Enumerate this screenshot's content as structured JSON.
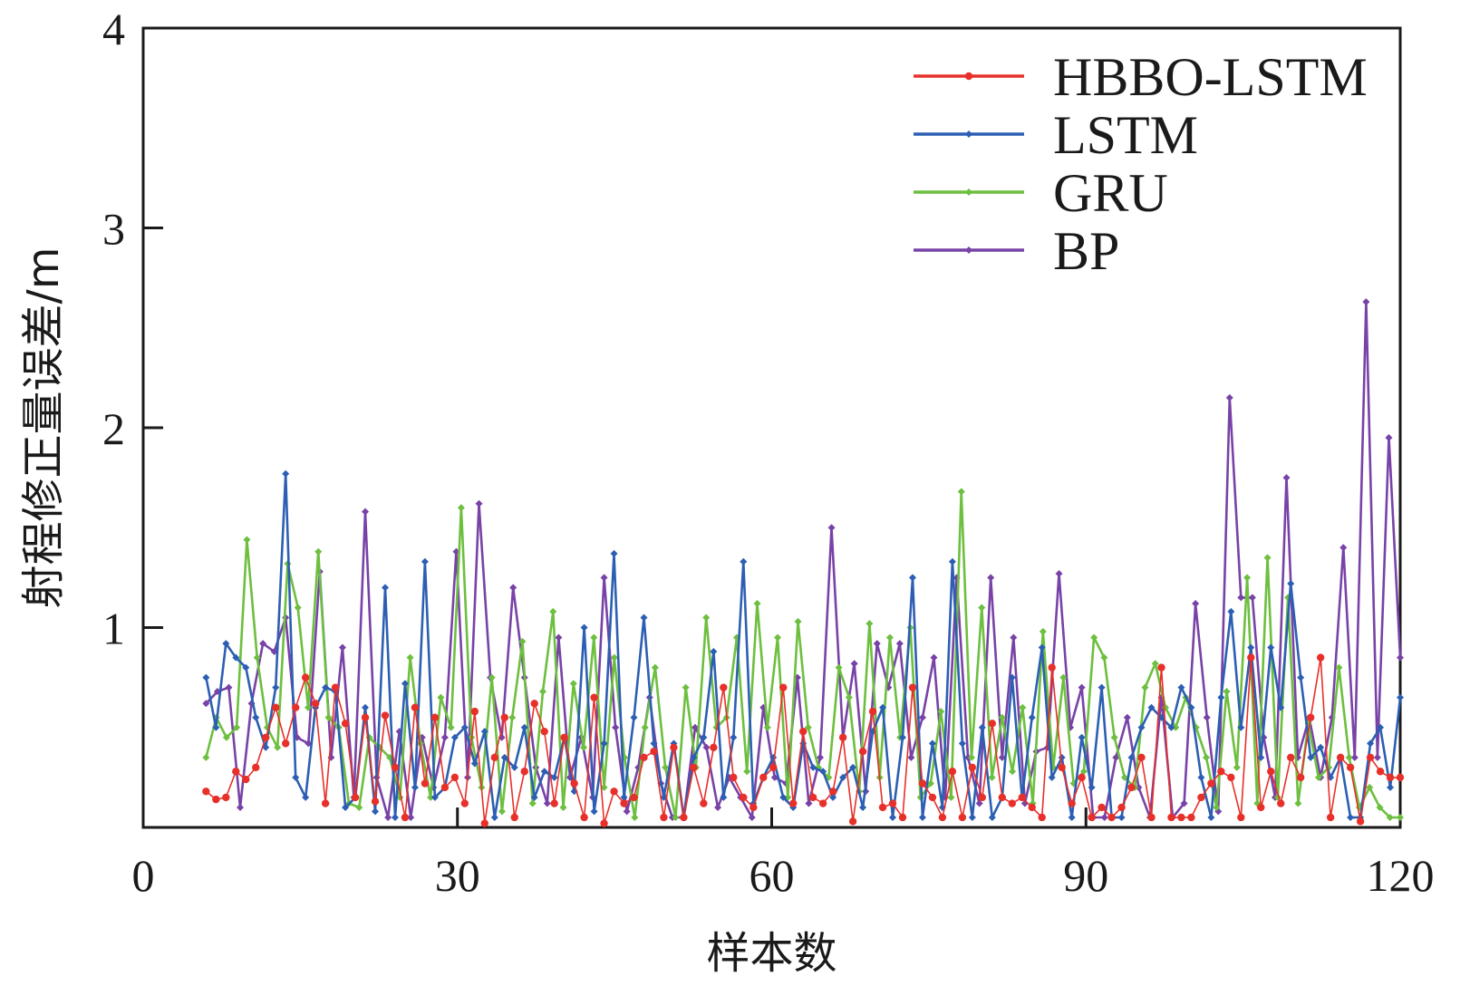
{
  "chart_data": {
    "type": "line",
    "title": "",
    "xlabel": "样本数",
    "ylabel": "射程修正量误差/m",
    "xlim": [
      0,
      120
    ],
    "ylim": [
      0,
      4
    ],
    "xticks": [
      0,
      30,
      60,
      90,
      120
    ],
    "yticks": [
      1,
      2,
      3,
      4
    ],
    "xtick_labels": [
      "0",
      "30",
      "60",
      "90",
      "120"
    ],
    "ytick_labels": [
      "1",
      "2",
      "3",
      "4"
    ],
    "grid": false,
    "legend_position": "top-right",
    "series": [
      {
        "name": "HBBO-LSTM",
        "color": "#e8302a",
        "values": [
          0.18,
          0.14,
          0.15,
          0.28,
          0.24,
          0.3,
          0.45,
          0.6,
          0.42,
          0.6,
          0.75,
          0.62,
          0.12,
          0.7,
          0.52,
          0.15,
          0.55,
          0.13,
          0.56,
          0.3,
          0.05,
          0.6,
          0.22,
          0.55,
          0.2,
          0.25,
          0.12,
          0.58,
          0.02,
          0.35,
          0.55,
          0.05,
          0.28,
          0.62,
          0.48,
          0.12,
          0.45,
          0.22,
          0.05,
          0.65,
          0.02,
          0.18,
          0.12,
          0.15,
          0.35,
          0.38,
          0.05,
          0.4,
          0.05,
          0.3,
          0.12,
          0.4,
          0.7,
          0.25,
          0.15,
          0.1,
          0.25,
          0.3,
          0.7,
          0.12,
          0.48,
          0.15,
          0.12,
          0.18,
          0.45,
          0.03,
          0.38,
          0.58,
          0.1,
          0.12,
          0.05,
          0.7,
          0.22,
          0.15,
          0.05,
          0.28,
          0.05,
          0.3,
          0.15,
          0.52,
          0.15,
          0.12,
          0.15,
          0.1,
          0.05,
          0.8,
          0.3,
          0.12,
          0.25,
          0.05,
          0.1,
          0.05,
          0.1,
          0.2,
          0.35,
          0.05,
          0.8,
          0.05,
          0.05,
          0.05,
          0.15,
          0.22,
          0.28,
          0.25,
          0.05,
          0.85,
          0.1,
          0.28,
          0.12,
          0.35,
          0.25,
          0.55,
          0.85,
          0.05,
          0.35,
          0.3,
          0.03,
          0.35,
          0.28,
          0.25,
          0.25
        ]
      },
      {
        "name": "LSTM",
        "color": "#2c5fb3",
        "values": [
          0.75,
          0.5,
          0.92,
          0.85,
          0.8,
          0.55,
          0.4,
          0.7,
          1.77,
          0.25,
          0.15,
          0.6,
          0.7,
          0.68,
          0.1,
          0.15,
          0.6,
          0.08,
          1.2,
          0.05,
          0.72,
          0.2,
          1.33,
          0.15,
          0.2,
          0.45,
          0.5,
          0.32,
          0.48,
          0.05,
          0.35,
          0.3,
          0.5,
          0.15,
          0.28,
          0.25,
          0.45,
          0.18,
          1.0,
          0.08,
          0.42,
          1.37,
          0.15,
          0.55,
          1.05,
          0.42,
          0.15,
          0.42,
          0.05,
          0.35,
          0.45,
          0.88,
          0.15,
          0.45,
          1.33,
          0.12,
          0.25,
          0.35,
          0.15,
          0.1,
          0.42,
          0.3,
          0.28,
          0.15,
          0.25,
          0.3,
          0.1,
          0.48,
          0.6,
          0.05,
          0.45,
          1.25,
          0.05,
          0.42,
          0.1,
          1.33,
          0.42,
          0.05,
          0.5,
          0.05,
          0.15,
          0.75,
          0.15,
          0.55,
          0.9,
          0.25,
          0.35,
          0.05,
          0.45,
          0.2,
          0.7,
          0.05,
          0.05,
          0.35,
          0.5,
          0.6,
          0.55,
          0.5,
          0.7,
          0.6,
          0.25,
          0.05,
          0.65,
          1.08,
          0.5,
          0.9,
          0.35,
          0.9,
          0.6,
          1.22,
          0.75,
          0.35,
          0.4,
          0.25,
          0.35,
          0.05,
          0.05,
          0.42,
          0.5,
          0.2,
          0.65
        ]
      },
      {
        "name": "GRU",
        "color": "#6dbf3f",
        "values": [
          0.35,
          0.55,
          0.45,
          0.5,
          1.44,
          0.85,
          0.5,
          0.4,
          1.32,
          1.1,
          0.6,
          1.38,
          0.55,
          0.5,
          0.12,
          0.1,
          0.45,
          0.4,
          0.35,
          0.15,
          0.85,
          0.42,
          0.15,
          0.65,
          0.5,
          1.6,
          0.45,
          0.2,
          0.75,
          0.08,
          0.55,
          0.93,
          0.12,
          0.68,
          1.08,
          0.1,
          0.72,
          0.4,
          0.95,
          0.2,
          0.85,
          0.35,
          0.05,
          0.5,
          0.8,
          0.3,
          0.05,
          0.7,
          0.3,
          1.05,
          0.5,
          0.55,
          0.95,
          0.28,
          1.12,
          0.5,
          0.95,
          0.15,
          1.03,
          0.5,
          0.3,
          0.25,
          0.8,
          0.65,
          0.18,
          1.02,
          0.25,
          0.95,
          0.45,
          1.0,
          0.15,
          0.22,
          0.58,
          0.15,
          1.68,
          0.35,
          1.1,
          0.25,
          0.55,
          0.28,
          0.6,
          0.12,
          0.98,
          0.3,
          0.75,
          0.22,
          0.28,
          0.95,
          0.85,
          0.45,
          0.25,
          0.2,
          0.7,
          0.82,
          0.6,
          0.5,
          0.65,
          0.5,
          0.35,
          0.1,
          0.68,
          0.3,
          1.25,
          0.12,
          1.35,
          0.15,
          1.15,
          0.12,
          0.52,
          0.25,
          0.3,
          0.8,
          0.35,
          0.1,
          0.2,
          0.1,
          0.05,
          0.05
        ]
      },
      {
        "name": "BP",
        "color": "#7842a7",
        "values": [
          0.62,
          0.68,
          0.7,
          0.1,
          0.62,
          0.92,
          0.88,
          1.05,
          0.45,
          0.42,
          1.28,
          0.35,
          0.9,
          0.15,
          1.58,
          0.25,
          0.05,
          0.48,
          0.05,
          0.45,
          0.2,
          0.45,
          1.38,
          0.25,
          1.62,
          0.75,
          0.45,
          1.2,
          0.75,
          0.3,
          0.12,
          0.95,
          0.25,
          0.45,
          0.15,
          1.25,
          0.5,
          0.08,
          0.3,
          0.65,
          0.22,
          0.05,
          0.05,
          0.5,
          0.4,
          0.1,
          0.25,
          0.15,
          0.05,
          0.6,
          0.25,
          0.22,
          0.75,
          0.12,
          0.35,
          1.5,
          0.45,
          0.82,
          0.18,
          0.92,
          0.7,
          0.92,
          0.35,
          0.55,
          0.85,
          0.15,
          1.25,
          0.35,
          0.12,
          1.25,
          0.35,
          0.95,
          0.12,
          0.38,
          0.4,
          1.27,
          0.5,
          0.7,
          0.05,
          0.05,
          0.35,
          0.55,
          0.2,
          0.05,
          0.65,
          0.05,
          0.12,
          1.12,
          0.55,
          0.08,
          2.15,
          1.15,
          1.15,
          0.45,
          0.15,
          1.75,
          0.35,
          0.55,
          0.25,
          0.55,
          1.4,
          0.35,
          2.63,
          0.35,
          1.95,
          0.85
        ]
      }
    ]
  }
}
